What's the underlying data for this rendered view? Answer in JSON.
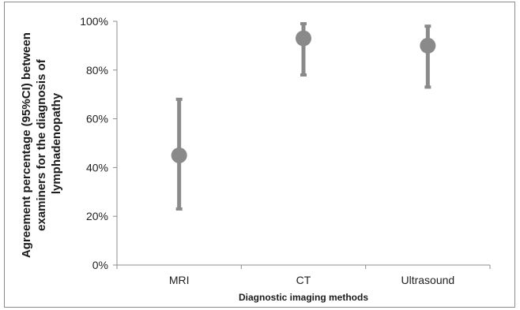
{
  "chart_data": {
    "type": "scatter",
    "title": "",
    "xlabel": "Diagnostic imaging methods",
    "ylabel_lines": [
      "Agreement percentage (95%CI) between",
      "examiners for the diagnosis of",
      "lymphadenopathy"
    ],
    "ylim": [
      0,
      100
    ],
    "y_ticks": [
      0,
      20,
      40,
      60,
      80,
      100
    ],
    "y_tick_labels": [
      "0%",
      "20%",
      "40%",
      "60%",
      "80%",
      "100%"
    ],
    "categories": [
      "MRI",
      "CT",
      "Ultrasound"
    ],
    "series": [
      {
        "values": [
          45,
          93,
          90
        ],
        "ci_lower": [
          23,
          78,
          73
        ],
        "ci_upper": [
          68,
          99,
          98
        ]
      }
    ],
    "grid": false,
    "marker_color": "#8a8a8a",
    "errorbar_color": "#8a8a8a"
  }
}
